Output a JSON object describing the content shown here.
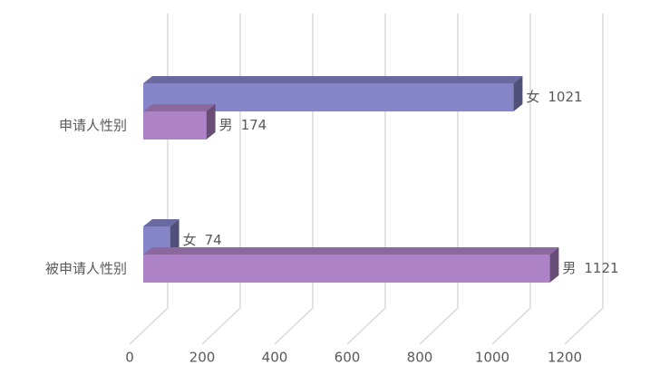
{
  "chart_data": {
    "type": "bar3d",
    "orientation": "horizontal",
    "categories": [
      "申请人性别",
      "被申请人性别"
    ],
    "series": [
      {
        "name": "女",
        "color": "#8585c8",
        "values": [
          1021,
          74
        ]
      },
      {
        "name": "男",
        "color": "#ae82c6",
        "values": [
          174,
          1121
        ]
      }
    ],
    "xlim": [
      0,
      1200
    ],
    "xticks": [
      0,
      200,
      400,
      600,
      800,
      1000,
      1200
    ],
    "grid": true
  }
}
